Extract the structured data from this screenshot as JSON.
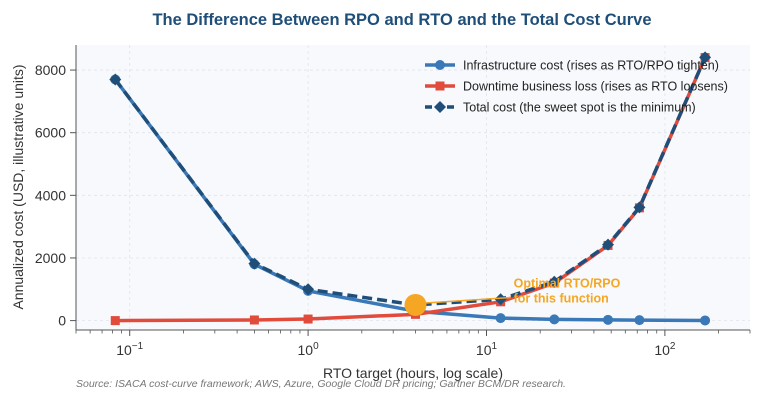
{
  "chart_data": {
    "type": "line",
    "title": "The Difference Between RPO and RTO and the Total Cost Curve",
    "xlabel": "RTO target (hours, log scale)",
    "ylabel": "Annualized cost (USD, illustrative units)",
    "x_scale": "log",
    "xlim": [
      0.05,
      300
    ],
    "ylim": [
      -300,
      8800
    ],
    "xticks": [
      {
        "value": 0.1,
        "base": "10",
        "exp": "−1"
      },
      {
        "value": 1,
        "base": "10",
        "exp": "0"
      },
      {
        "value": 10,
        "base": "10",
        "exp": "1"
      },
      {
        "value": 100,
        "base": "10",
        "exp": "2"
      }
    ],
    "yticks": [
      0,
      2000,
      4000,
      6000,
      8000
    ],
    "grid": true,
    "legend_position": "top-right",
    "series": [
      {
        "name": "Infrastructure cost (rises as RTO/RPO tighten)",
        "color": "#3a78b8",
        "marker": "circle",
        "line_style": "solid",
        "x": [
          0.083,
          0.5,
          1,
          4,
          12,
          24,
          48,
          72,
          168
        ],
        "y": [
          7700,
          1800,
          950,
          300,
          80,
          40,
          25,
          15,
          5
        ]
      },
      {
        "name": "Downtime business loss (rises as RTO loosens)",
        "color": "#e04b3c",
        "marker": "square",
        "line_style": "solid",
        "x": [
          0.083,
          0.5,
          1,
          4,
          12,
          24,
          48,
          72,
          168
        ],
        "y": [
          0,
          20,
          50,
          200,
          600,
          1200,
          2400,
          3600,
          8400
        ]
      },
      {
        "name": "Total cost (the sweet spot is the minimum)",
        "color": "#1f4e79",
        "marker": "diamond",
        "line_style": "dashed",
        "x": [
          0.083,
          0.5,
          1,
          4,
          12,
          24,
          48,
          72,
          168
        ],
        "y": [
          7700,
          1820,
          1000,
          500,
          680,
          1240,
          2425,
          3615,
          8405
        ]
      }
    ],
    "annotation": {
      "text_lines": [
        "Optimal RTO/RPO",
        "for this function"
      ],
      "point": {
        "x": 4,
        "y": 500
      },
      "text_anchor": {
        "x": 12,
        "y": 800
      },
      "color": "#f5a623"
    },
    "source_note": "Source: ISACA cost-curve framework; AWS, Azure, Google Cloud DR pricing; Gartner BCM/DR research."
  },
  "colors": {
    "title": "#1f4e79",
    "plot_background": "#f7f9fc",
    "grid": "#dfe5ee",
    "axis": "#555555",
    "source": "#777777"
  }
}
